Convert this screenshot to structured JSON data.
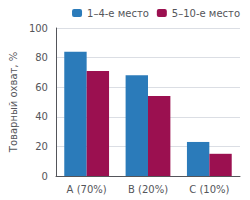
{
  "chart_data": {
    "type": "bar",
    "ylabel": "Товарный охват, %",
    "categories": [
      "A (70%)",
      "B (20%)",
      "C (10%)"
    ],
    "series": [
      {
        "name": "1–4-е место",
        "color": "#2b7bba",
        "values": [
          84,
          68,
          23
        ]
      },
      {
        "name": "5–10-е место",
        "color": "#9b1050",
        "values": [
          71,
          54,
          15
        ]
      }
    ],
    "ylim": [
      0,
      100
    ],
    "yticks": [
      0,
      20,
      40,
      60,
      80,
      100
    ],
    "grid": true,
    "legend": "upper right"
  }
}
